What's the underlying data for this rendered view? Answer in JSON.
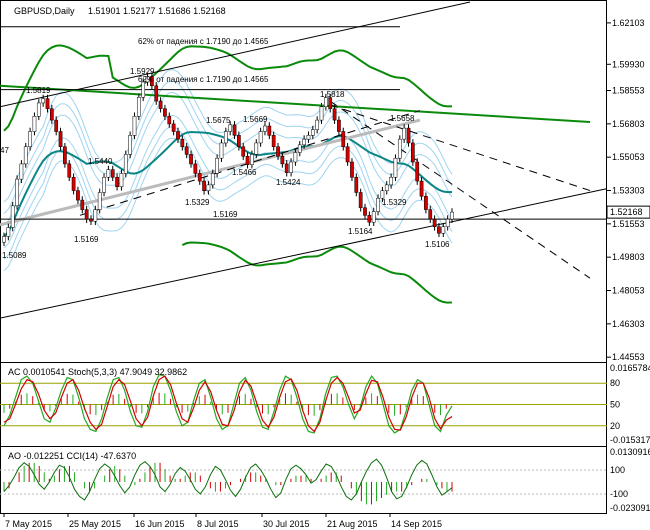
{
  "chart_data": {
    "type": "candlestick",
    "symbol_header": "GBPUSD,Daily",
    "ohlc_header": "1.51901 1.52177 1.51686 1.52168",
    "current_price": "1.52168",
    "colors": {
      "bull": "#ffffff",
      "bear": "#d40000",
      "ma_green": "#0a8a0a",
      "ma_teal": "#0b8585",
      "band": "#9fd4f0",
      "trend": "#000000"
    },
    "price_axis": {
      "min": 1.443,
      "max": 1.632,
      "ticks": [
        "1.62103",
        "1.59930",
        "1.58553",
        "1.56803",
        "1.55053",
        "1.53303",
        "1.51553",
        "1.49803",
        "1.48053",
        "1.46303",
        "1.44553"
      ]
    },
    "x_axis": {
      "labels": [
        "7 May 2015",
        "25 May 2015",
        "16 Jun 2015",
        "8 Jul 2015",
        "30 Jul 2015",
        "21 Aug 2015",
        "14 Sep 2015"
      ]
    },
    "candles_close": [
      1.5089,
      1.5136,
      1.525,
      1.539,
      1.547,
      1.556,
      1.564,
      1.572,
      1.579,
      1.5813,
      1.576,
      1.57,
      1.564,
      1.556,
      1.547,
      1.54,
      1.533,
      1.528,
      1.523,
      1.518,
      1.5169,
      1.523,
      1.532,
      1.54,
      1.544,
      1.54,
      1.535,
      1.542,
      1.552,
      1.562,
      1.572,
      1.582,
      1.59,
      1.5929,
      1.588,
      1.58,
      1.576,
      1.572,
      1.568,
      1.564,
      1.56,
      1.556,
      1.552,
      1.547,
      1.542,
      1.538,
      1.5329,
      1.536,
      1.542,
      1.55,
      1.558,
      1.564,
      1.5675,
      1.562,
      1.556,
      1.551,
      1.5466,
      1.552,
      1.558,
      1.564,
      1.5669,
      1.562,
      1.556,
      1.551,
      1.547,
      1.5424,
      1.548,
      1.553,
      1.557,
      1.56,
      1.562,
      1.565,
      1.57,
      1.577,
      1.5818,
      1.576,
      1.57,
      1.564,
      1.556,
      1.548,
      1.54,
      1.532,
      1.524,
      1.52,
      1.5164,
      1.522,
      1.529,
      1.5329,
      1.536,
      1.54,
      1.55,
      1.56,
      1.5658,
      1.558,
      1.548,
      1.538,
      1.53,
      1.523,
      1.518,
      1.514,
      1.5106,
      1.514,
      1.518,
      1.5217
    ],
    "price_labels": [
      "1.5819",
      "1.5929",
      "1.5675",
      "1.5669",
      "1.5818",
      "1.5658",
      "1.5440",
      "1.5466",
      "1.5424",
      "1.5329",
      "1.5329",
      "1.5169",
      "1.5169",
      "1.5164",
      "1.5106",
      "1.5089",
      "47",
      "62% от падения с 1.7190 до 1.4565",
      "62% от падения с 1.7190 до 1.4565"
    ],
    "stochastic": {
      "header": "AC 0.0010541  Stoch(5,3,3) 47.9049 32.9862",
      "axis_ticks": [
        "0.0165784",
        "80",
        "50",
        "20",
        "-0.0153179"
      ],
      "levels": [
        80,
        50,
        20
      ],
      "main": [
        20,
        35,
        60,
        85,
        90,
        80,
        55,
        30,
        25,
        45,
        70,
        88,
        85,
        60,
        30,
        15,
        12,
        30,
        60,
        85,
        88,
        70,
        40,
        20,
        18,
        40,
        75,
        92,
        90,
        70,
        40,
        20,
        25,
        55,
        80,
        85,
        60,
        30,
        15,
        20,
        50,
        80,
        88,
        70,
        40,
        18,
        15,
        40,
        70,
        90,
        85,
        60,
        30,
        12,
        10,
        30,
        65,
        88,
        90,
        75,
        50,
        30,
        45,
        75,
        90,
        80,
        50,
        20,
        10,
        15,
        40,
        70,
        85,
        80,
        50,
        20,
        12,
        35,
        48
      ],
      "signal": [
        25,
        30,
        50,
        72,
        85,
        82,
        65,
        42,
        30,
        38,
        60,
        80,
        85,
        70,
        45,
        25,
        15,
        22,
        48,
        75,
        85,
        78,
        55,
        30,
        20,
        32,
        62,
        85,
        90,
        78,
        52,
        30,
        25,
        45,
        70,
        82,
        68,
        42,
        22,
        20,
        40,
        68,
        84,
        76,
        52,
        28,
        18,
        32,
        60,
        82,
        86,
        70,
        42,
        20,
        12,
        25,
        55,
        80,
        88,
        80,
        60,
        38,
        42,
        65,
        84,
        82,
        60,
        32,
        15,
        14,
        32,
        60,
        80,
        80,
        60,
        30,
        16,
        28,
        33
      ]
    },
    "cci": {
      "header": "AO -0.012251  CCI(14) -47.6370",
      "axis_ticks": [
        "0.0130916",
        "100",
        "-100",
        "-0.0230916"
      ],
      "values": [
        -80,
        -30,
        40,
        120,
        160,
        130,
        60,
        -20,
        -60,
        0,
        80,
        140,
        120,
        40,
        -60,
        -120,
        -150,
        -80,
        20,
        110,
        150,
        120,
        50,
        -30,
        -90,
        -40,
        60,
        140,
        170,
        130,
        60,
        -40,
        -80,
        -20,
        70,
        120,
        90,
        20,
        -60,
        -100,
        -40,
        60,
        130,
        100,
        20,
        -70,
        -120,
        -60,
        40,
        120,
        150,
        100,
        30,
        -60,
        -130,
        -90,
        20,
        110,
        140,
        110,
        60,
        -10,
        20,
        90,
        150,
        130,
        60,
        -40,
        -120,
        -150,
        -100,
        0,
        90,
        160,
        190,
        140,
        40,
        -80,
        -140,
        -120,
        -40,
        60,
        140,
        180,
        150,
        60,
        -40,
        -110,
        -80,
        -47
      ],
      "ao_bars": [
        -3,
        -2,
        0,
        3,
        5,
        6,
        6,
        5,
        3,
        1,
        2,
        4,
        5,
        5,
        3,
        0,
        -2,
        -3,
        -2,
        0,
        2,
        4,
        5,
        4,
        2,
        0,
        -1,
        1,
        3,
        5,
        6,
        6,
        4,
        2,
        1,
        1,
        2,
        3,
        3,
        2,
        0,
        -2,
        -3,
        -3,
        -2,
        -1,
        0,
        1,
        2,
        3,
        3,
        2,
        1,
        0,
        -1,
        -1,
        0,
        1,
        2,
        2,
        2,
        1,
        0,
        1,
        2,
        3,
        3,
        2,
        0,
        -2,
        -4,
        -6,
        -7,
        -7,
        -6,
        -5,
        -4,
        -3,
        -3,
        -3,
        -2,
        -1,
        0,
        1,
        1,
        0,
        -1,
        -2,
        -3,
        -3
      ]
    }
  }
}
